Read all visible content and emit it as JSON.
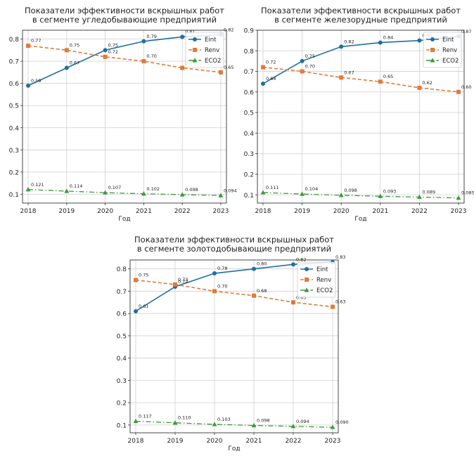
{
  "chart_data": [
    {
      "type": "line",
      "title": [
        "Показатели эффективности вскрышных работ",
        "в сегменте угледобывающие предприятий"
      ],
      "xlabel": "Год",
      "ylabel": "",
      "categories": [
        "2018",
        "2019",
        "2020",
        "2021",
        "2022",
        "2023"
      ],
      "ylim": [
        0.06,
        0.84
      ],
      "yticks": [
        0.1,
        0.2,
        0.3,
        0.4,
        0.5,
        0.6,
        0.7,
        0.8
      ],
      "ytick_labels": [
        "0.1",
        "0.2",
        "0.3",
        "0.4",
        "0.5",
        "0.6",
        "0.7",
        "0.8"
      ],
      "grid": true,
      "legend": "top-right",
      "series": [
        {
          "name": "Eint",
          "values": [
            0.59,
            0.67,
            0.75,
            0.79,
            0.81,
            0.82
          ],
          "labels": [
            "0.59",
            "0.67",
            "0.75",
            "0.79",
            "0.81",
            "0.82"
          ],
          "color": "#1f6f9f",
          "marker": "circle",
          "dash": "solid"
        },
        {
          "name": "Renv",
          "values": [
            0.77,
            0.75,
            0.72,
            0.7,
            0.67,
            0.65
          ],
          "labels": [
            "0.77",
            "0.75",
            "0.72",
            "0.70",
            "0.67",
            "0.65"
          ],
          "color": "#e07b39",
          "marker": "square",
          "dash": "dashed"
        },
        {
          "name": "ECO2",
          "values": [
            0.121,
            0.114,
            0.107,
            0.102,
            0.098,
            0.094
          ],
          "labels": [
            "0.121",
            "0.114",
            "0.107",
            "0.102",
            "0.098",
            "0.094"
          ],
          "color": "#3a9a3a",
          "marker": "triangle",
          "dash": "dashdot"
        }
      ]
    },
    {
      "type": "line",
      "title": [
        "Показатели эффективности вскрышных работ",
        "в сегменте железорудные предприятий"
      ],
      "xlabel": "Год",
      "ylabel": "",
      "categories": [
        "2018",
        "2019",
        "2020",
        "2021",
        "2022",
        "2023"
      ],
      "ylim": [
        0.06,
        0.9
      ],
      "yticks": [
        0.1,
        0.2,
        0.3,
        0.4,
        0.5,
        0.6,
        0.7,
        0.8,
        0.9
      ],
      "ytick_labels": [
        "0.1",
        "0.2",
        "0.3",
        "0.4",
        "0.5",
        "0.6",
        "0.7",
        "0.8",
        "0.9"
      ],
      "grid": true,
      "legend": "top-right",
      "series": [
        {
          "name": "Eint",
          "values": [
            0.64,
            0.75,
            0.82,
            0.84,
            0.85,
            0.87
          ],
          "labels": [
            "0.64",
            "0.75",
            "0.82",
            "0.84",
            "0.85",
            "0.87"
          ],
          "color": "#1f6f9f",
          "marker": "circle",
          "dash": "solid"
        },
        {
          "name": "Renv",
          "values": [
            0.72,
            0.7,
            0.67,
            0.65,
            0.62,
            0.6
          ],
          "labels": [
            "0.72",
            "0.70",
            "0.67",
            "0.65",
            "0.62",
            "0.60"
          ],
          "color": "#e07b39",
          "marker": "square",
          "dash": "dashed"
        },
        {
          "name": "ECO2",
          "values": [
            0.111,
            0.104,
            0.098,
            0.093,
            0.089,
            0.085
          ],
          "labels": [
            "0.111",
            "0.104",
            "0.098",
            "0.093",
            "0.089",
            "0.085"
          ],
          "color": "#3a9a3a",
          "marker": "triangle",
          "dash": "dashdot"
        }
      ]
    },
    {
      "type": "line",
      "title": [
        "Показатели эффективности вскрышных работ",
        "в сегменте золотодобывающие предприятий"
      ],
      "xlabel": "Год",
      "ylabel": "",
      "categories": [
        "2018",
        "2019",
        "2020",
        "2021",
        "2022",
        "2023"
      ],
      "ylim": [
        0.065,
        0.84
      ],
      "yticks": [
        0.1,
        0.2,
        0.3,
        0.4,
        0.5,
        0.6,
        0.7,
        0.8
      ],
      "ytick_labels": [
        "0.1",
        "0.2",
        "0.3",
        "0.4",
        "0.5",
        "0.6",
        "0.7",
        "0.8"
      ],
      "grid": true,
      "legend": "top-right",
      "series": [
        {
          "name": "Eint",
          "values": [
            0.61,
            0.72,
            0.78,
            0.8,
            0.82,
            0.83
          ],
          "labels": [
            "0.61",
            "0.72",
            "0.78",
            "0.80",
            "0.82",
            "0.83"
          ],
          "color": "#1f6f9f",
          "marker": "circle",
          "dash": "solid"
        },
        {
          "name": "Renv",
          "values": [
            0.75,
            0.73,
            0.7,
            0.68,
            0.65,
            0.63
          ],
          "labels": [
            "0.75",
            "0.73",
            "0.70",
            "0.68",
            "0.65",
            "0.63"
          ],
          "color": "#e07b39",
          "marker": "square",
          "dash": "dashed"
        },
        {
          "name": "ECO2",
          "values": [
            0.117,
            0.11,
            0.103,
            0.098,
            0.094,
            0.09
          ],
          "labels": [
            "0.117",
            "0.110",
            "0.103",
            "0.098",
            "0.094",
            "0.090"
          ],
          "color": "#3a9a3a",
          "marker": "triangle",
          "dash": "dashdot"
        }
      ]
    }
  ]
}
